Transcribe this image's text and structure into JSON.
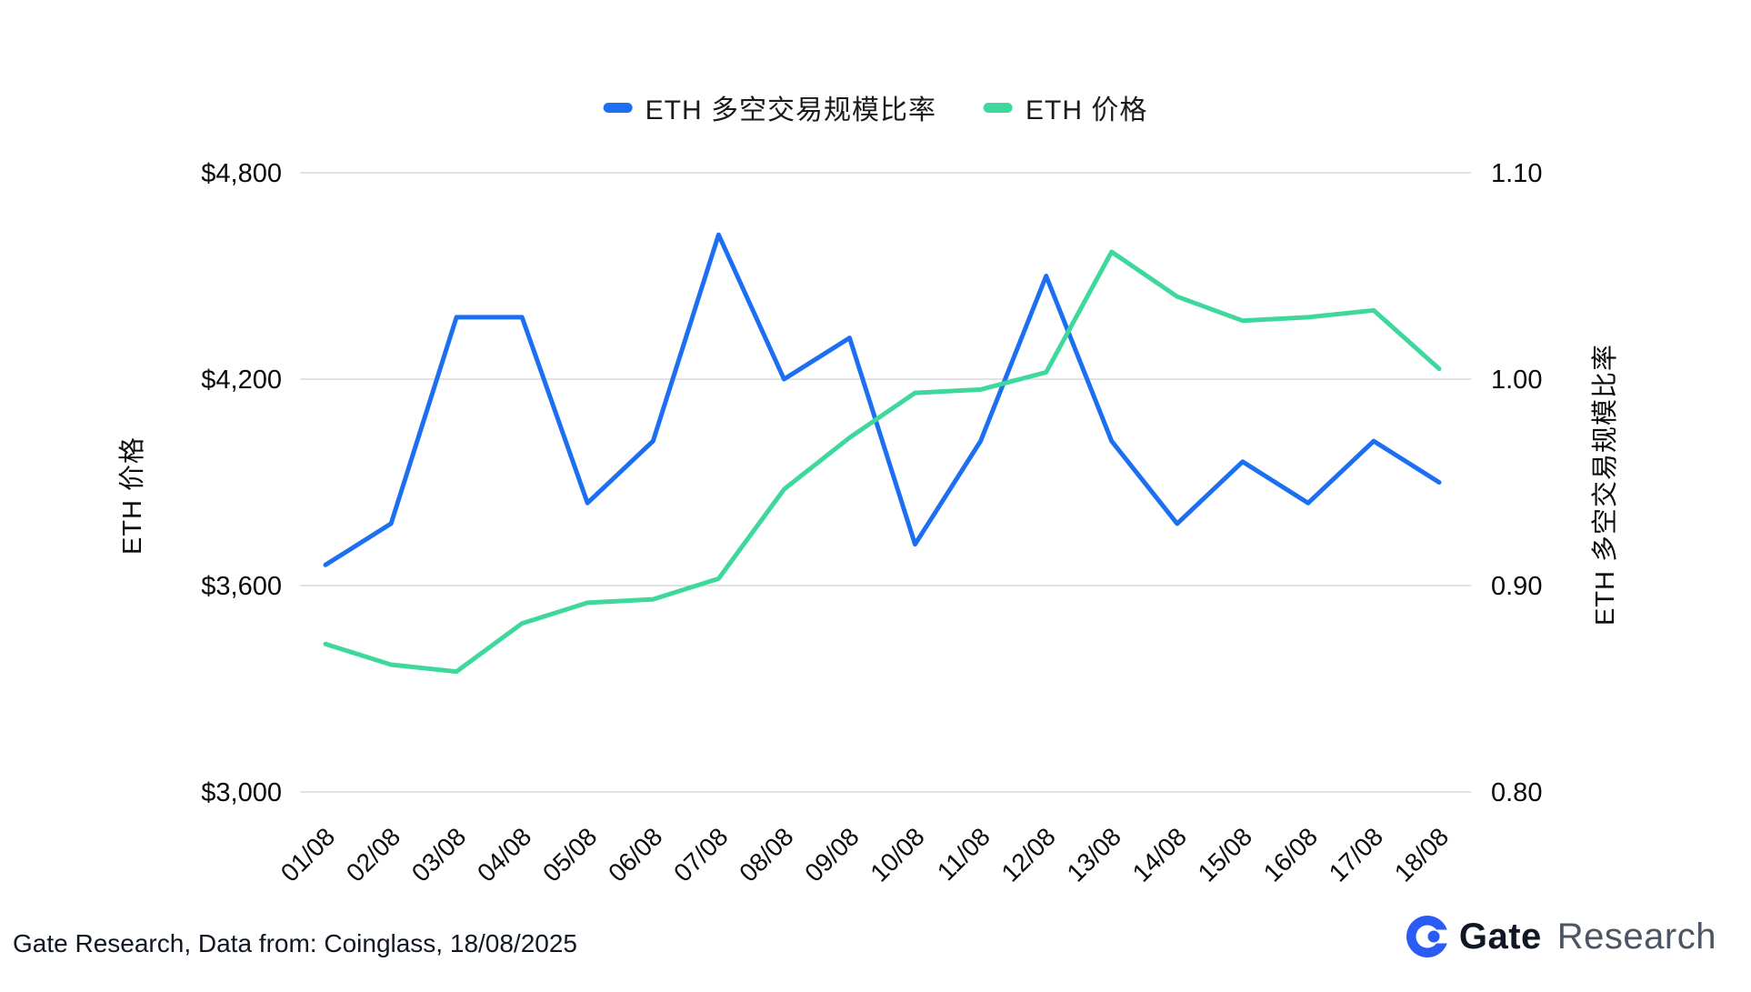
{
  "colors": {
    "blue": "#1d6ff2",
    "green": "#3ed89c",
    "grid": "#d9d9d9",
    "tick_text": "#0b0b0b",
    "logo_icon": "#2b5bf5"
  },
  "legend": {
    "items": [
      {
        "label": "ETH 多空交易规模比率",
        "series": 0
      },
      {
        "label": "ETH  价格",
        "series": 1
      }
    ]
  },
  "left_axis": {
    "title": "ETH 价格",
    "tick_labels": [
      "$4,800",
      "$4,200",
      "$3,600",
      "$3,000"
    ],
    "tick_values": [
      4800,
      4200,
      3600,
      3000
    ]
  },
  "right_axis": {
    "title": "ETH 多空交易规模比率",
    "tick_labels": [
      "1.10",
      "1.00",
      "0.90",
      "0.80"
    ],
    "tick_values": [
      1.1,
      1.0,
      0.9,
      0.8
    ]
  },
  "chart_data": {
    "type": "line",
    "x": [
      "01/08",
      "02/08",
      "03/08",
      "04/08",
      "05/08",
      "06/08",
      "07/08",
      "08/08",
      "09/08",
      "10/08",
      "11/08",
      "12/08",
      "13/08",
      "14/08",
      "15/08",
      "16/08",
      "17/08",
      "18/08"
    ],
    "title": "",
    "grid": "horizontal-only",
    "legend_position": "top-center",
    "left_range": [
      3000,
      4800
    ],
    "right_range": [
      0.8,
      1.1
    ],
    "series": [
      {
        "name": "ETH 多空交易规模比率",
        "axis": "right",
        "color": "#1d6ff2",
        "values": [
          0.91,
          0.93,
          1.03,
          1.03,
          0.94,
          0.97,
          1.07,
          1.0,
          1.02,
          0.92,
          0.97,
          1.05,
          0.97,
          0.93,
          0.96,
          0.94,
          0.97,
          0.95
        ]
      },
      {
        "name": "ETH 价格",
        "axis": "left",
        "color": "#3ed89c",
        "values": [
          3430,
          3370,
          3350,
          3490,
          3550,
          3560,
          3620,
          3880,
          4030,
          4160,
          4170,
          4220,
          4570,
          4440,
          4370,
          4380,
          4400,
          4230
        ]
      }
    ]
  },
  "footer": {
    "text": "Gate Research, Data from: Coinglass, 18/08/2025"
  },
  "logo": {
    "brand": "Gate",
    "suffix": "Research",
    "icon": "gate-circle-logo"
  }
}
